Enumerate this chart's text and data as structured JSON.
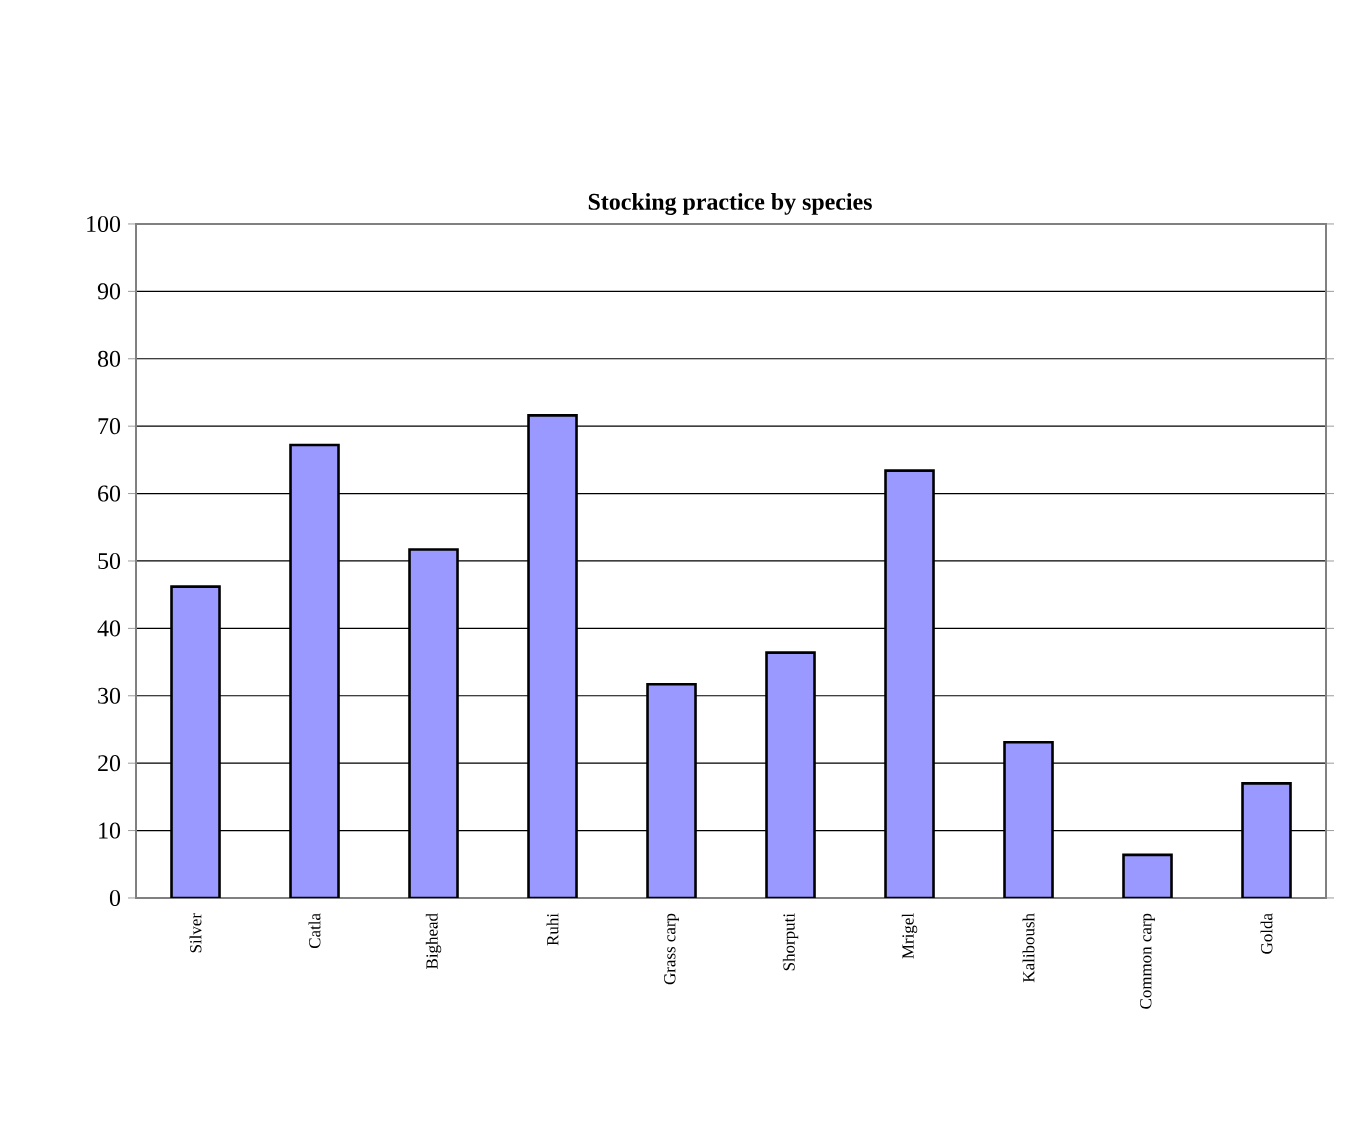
{
  "chart_data": {
    "type": "bar",
    "title": "Stocking practice by species",
    "categories": [
      "Silver",
      "Catla",
      "Bighead",
      "Ruhi",
      "Grass carp",
      "Shorputi",
      "Mrigel",
      "Kaliboush",
      "Common carp",
      "Golda"
    ],
    "values": [
      46.2,
      67.2,
      51.7,
      71.6,
      31.7,
      36.4,
      63.4,
      23.1,
      6.4,
      17.0
    ],
    "color": "#9999ff",
    "ylim": [
      0,
      100
    ],
    "yticks": [
      0,
      10,
      20,
      30,
      40,
      50,
      60,
      70,
      80,
      90,
      100
    ],
    "grid": "y"
  }
}
